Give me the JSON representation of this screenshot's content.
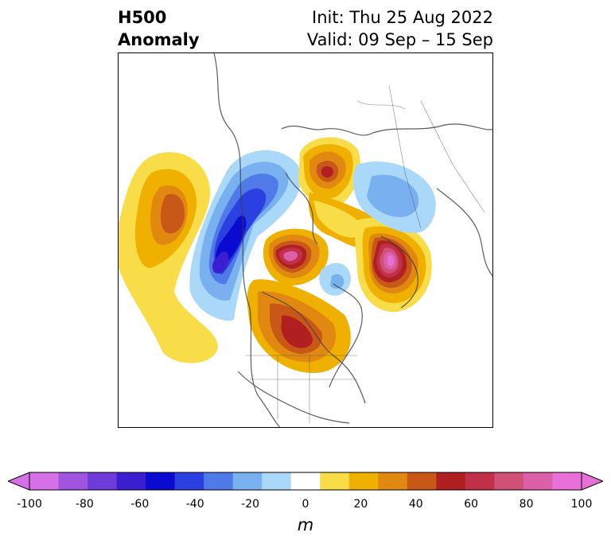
{
  "header": {
    "title_line1": "H500",
    "title_line2": "Anomaly",
    "init_text": "Init: Thu 25 Aug 2022",
    "valid_text": "Valid: 09 Sep – 15 Sep"
  },
  "colorbar": {
    "unit": "m",
    "ticks": [
      "-100",
      "-80",
      "-60",
      "-40",
      "-20",
      "0",
      "20",
      "40",
      "60",
      "80",
      "100"
    ],
    "colors": [
      "#d670e6",
      "#9f55e0",
      "#6e3cd8",
      "#3a1fd0",
      "#0a0ad0",
      "#2a40e0",
      "#4f7ae8",
      "#78b0f0",
      "#aad8f8",
      "#ffffff",
      "#f8dc48",
      "#f0b000",
      "#e08810",
      "#c85818",
      "#b02020",
      "#c03048",
      "#d05078",
      "#dc60a8",
      "#e870d8"
    ],
    "min_arrow_color": "#d670e6",
    "max_arrow_color": "#e870d8"
  }
}
